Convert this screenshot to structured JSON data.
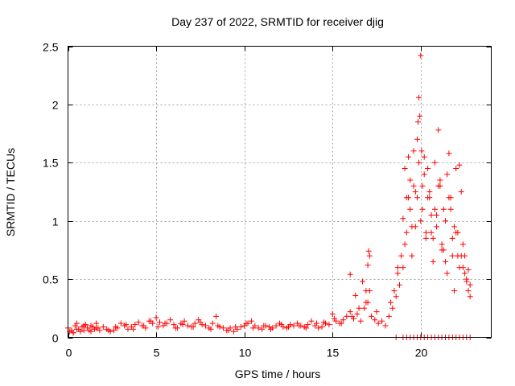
{
  "chart_data": {
    "type": "scatter",
    "title": "Day 237 of 2022, SRMTID for receiver djig",
    "xlabel": "GPS time / hours",
    "ylabel": "SRMTID / TECUs",
    "xlim": [
      0,
      24
    ],
    "ylim": [
      0,
      2.5
    ],
    "xticks": [
      0,
      5,
      10,
      15,
      20
    ],
    "xtick_labels": [
      "0",
      "5",
      "10",
      "15",
      "20"
    ],
    "yticks": [
      0,
      0.5,
      1,
      1.5,
      2,
      2.5
    ],
    "ytick_labels": [
      "0",
      "0.5",
      "1",
      "1.5",
      "2",
      "2.5"
    ],
    "grid": true,
    "marker": "plus",
    "color": "#ff0000",
    "series": [
      {
        "name": "djig",
        "x": [
          0.0,
          0.1,
          0.2,
          0.3,
          0.4,
          0.5,
          0.6,
          0.7,
          0.8,
          0.9,
          1.0,
          1.1,
          1.2,
          1.3,
          1.4,
          1.5,
          1.6,
          1.7,
          1.8,
          2.0,
          2.2,
          2.4,
          2.6,
          2.8,
          3.0,
          3.2,
          3.4,
          3.6,
          3.8,
          4.0,
          4.2,
          4.4,
          4.6,
          4.8,
          5.0,
          5.2,
          5.4,
          5.6,
          5.8,
          6.0,
          6.2,
          6.4,
          6.6,
          6.8,
          7.0,
          7.2,
          7.4,
          7.6,
          7.8,
          8.0,
          8.2,
          8.4,
          8.6,
          8.8,
          9.0,
          9.2,
          9.4,
          9.6,
          9.8,
          10.0,
          10.2,
          10.4,
          10.6,
          10.8,
          11.0,
          11.2,
          11.4,
          11.6,
          11.8,
          12.0,
          12.2,
          12.4,
          12.6,
          12.8,
          13.0,
          13.2,
          13.4,
          13.6,
          13.8,
          14.0,
          14.2,
          14.4,
          14.6,
          14.8,
          15.0,
          15.2,
          15.4,
          15.6,
          15.8,
          16.0,
          16.2,
          16.4,
          16.6,
          16.8,
          17.0,
          17.2,
          17.4,
          17.6,
          17.8,
          18.0,
          18.2,
          18.4,
          18.6,
          18.8,
          19.0,
          19.2,
          19.4,
          19.6,
          19.8,
          20.0,
          20.2,
          20.4,
          20.6,
          20.8,
          21.0,
          21.2,
          21.4,
          21.6,
          21.8,
          22.0,
          22.2,
          22.4,
          22.6,
          22.8,
          0.3,
          0.5,
          0.9,
          1.3,
          1.6,
          2.3,
          2.7,
          3.3,
          3.7,
          4.3,
          4.7,
          5.1,
          5.5,
          6.1,
          6.5,
          7.1,
          7.5,
          8.1,
          8.5,
          9.1,
          9.5,
          10.1,
          10.5,
          11.1,
          11.5,
          12.1,
          12.5,
          13.1,
          13.5,
          14.1,
          14.5,
          15.1,
          15.5,
          16.1,
          16.5,
          16.9,
          17.1,
          17.5,
          18.3,
          18.7,
          19.1,
          19.3,
          19.5,
          19.7,
          19.9,
          20.1,
          20.3,
          20.5,
          20.7,
          20.9,
          21.1,
          21.3,
          21.5,
          21.7,
          21.9,
          22.1,
          22.3,
          22.5,
          22.7,
          16.0,
          16.3,
          16.7,
          16.9,
          17.0,
          17.05,
          17.1,
          18.5,
          18.7,
          18.9,
          19.0,
          19.1,
          19.2,
          19.3,
          19.4,
          19.5,
          19.6,
          19.7,
          19.8,
          19.85,
          19.9,
          19.95,
          20.0,
          20.05,
          20.1,
          20.2,
          20.3,
          20.4,
          20.5,
          20.6,
          20.7,
          20.8,
          20.9,
          21.0,
          21.1,
          21.2,
          21.3,
          21.4,
          21.5,
          21.6,
          21.7,
          21.8,
          21.9,
          22.0,
          22.1,
          22.2,
          22.3,
          22.4,
          22.5,
          22.6,
          22.7,
          22.8,
          18.6,
          19.0,
          19.2,
          19.4,
          19.6,
          19.8,
          20.0,
          20.2,
          20.4,
          20.6,
          20.8,
          21.0,
          21.2,
          21.4,
          21.6,
          21.8,
          22.0,
          22.2,
          22.4,
          22.6,
          22.8
        ],
        "y": [
          0.08,
          0.05,
          0.06,
          0.04,
          0.1,
          0.12,
          0.07,
          0.05,
          0.09,
          0.06,
          0.11,
          0.08,
          0.06,
          0.1,
          0.09,
          0.07,
          0.12,
          0.08,
          0.06,
          0.09,
          0.07,
          0.05,
          0.06,
          0.08,
          0.12,
          0.1,
          0.07,
          0.09,
          0.11,
          0.13,
          0.1,
          0.08,
          0.14,
          0.12,
          0.17,
          0.13,
          0.1,
          0.12,
          0.15,
          0.11,
          0.08,
          0.12,
          0.14,
          0.1,
          0.09,
          0.12,
          0.15,
          0.11,
          0.1,
          0.08,
          0.12,
          0.18,
          0.09,
          0.08,
          0.06,
          0.08,
          0.05,
          0.07,
          0.09,
          0.1,
          0.12,
          0.14,
          0.1,
          0.08,
          0.07,
          0.1,
          0.09,
          0.08,
          0.1,
          0.12,
          0.09,
          0.08,
          0.11,
          0.1,
          0.12,
          0.1,
          0.09,
          0.11,
          0.14,
          0.1,
          0.08,
          0.09,
          0.12,
          0.11,
          0.2,
          0.14,
          0.12,
          0.15,
          0.18,
          0.22,
          0.16,
          0.2,
          0.14,
          0.25,
          0.3,
          0.18,
          0.15,
          0.12,
          0.14,
          0.1,
          0.18,
          0.25,
          0.35,
          0.45,
          0.6,
          0.9,
          1.1,
          1.3,
          1.2,
          1.0,
          1.4,
          1.2,
          0.9,
          1.1,
          1.3,
          0.8,
          1.0,
          1.2,
          0.7,
          0.9,
          0.6,
          0.8,
          0.5,
          0.45,
          0.04,
          0.07,
          0.1,
          0.05,
          0.08,
          0.06,
          0.09,
          0.11,
          0.07,
          0.1,
          0.14,
          0.09,
          0.12,
          0.08,
          0.11,
          0.09,
          0.13,
          0.07,
          0.1,
          0.06,
          0.09,
          0.12,
          0.08,
          0.1,
          0.07,
          0.11,
          0.09,
          0.1,
          0.08,
          0.12,
          0.13,
          0.16,
          0.12,
          0.18,
          0.25,
          0.3,
          0.4,
          0.22,
          0.3,
          0.6,
          0.8,
          1.2,
          0.7,
          0.95,
          1.5,
          1.1,
          0.85,
          1.2,
          0.65,
          1.05,
          1.3,
          0.75,
          0.55,
          1.1,
          0.4,
          0.9,
          0.7,
          0.55,
          0.4,
          0.54,
          0.36,
          0.48,
          0.4,
          0.62,
          0.74,
          0.7,
          0.4,
          0.55,
          0.7,
          1.02,
          1.45,
          1.2,
          1.55,
          1.35,
          0.95,
          1.6,
          1.25,
          1.7,
          1.85,
          2.06,
          1.9,
          2.42,
          1.6,
          1.3,
          1.55,
          0.9,
          1.45,
          1.25,
          1.05,
          0.85,
          1.5,
          0.95,
          1.78,
          1.35,
          0.75,
          1.1,
          0.65,
          1.4,
          1.58,
          1.2,
          0.85,
          0.95,
          1.45,
          0.7,
          1.48,
          1.25,
          0.6,
          0.7,
          0.48,
          0.58,
          0.35,
          0.0,
          0.0,
          0.0,
          0.0,
          0.0,
          0.0,
          0.0,
          0.0,
          0.0,
          0.0,
          0.0,
          0.0,
          0.0,
          0.0,
          0.0,
          0.0,
          0.0,
          0.0,
          0.0,
          0.0,
          0.0
        ]
      }
    ]
  }
}
